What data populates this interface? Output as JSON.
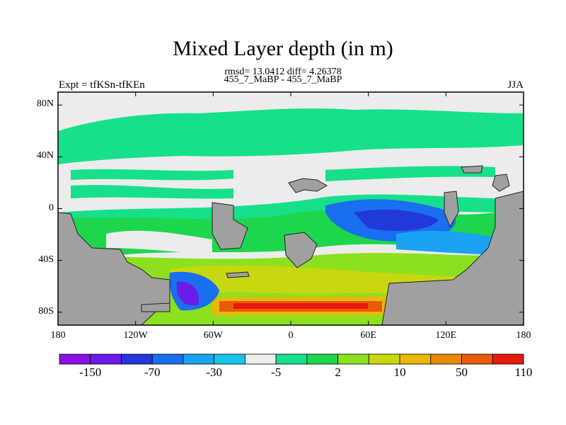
{
  "figure": {
    "title": "Mixed Layer depth (in m)",
    "stats_line": "rmsd= 13.0412  diff= 4.26378",
    "subtitle": "455_7_MaBP - 455_7_MaBP",
    "left_label": "Expt = tfKSn-tfKEn",
    "right_label": "JJA"
  },
  "axes": {
    "lat_ticks": [
      "80N",
      "40N",
      "0",
      "40S",
      "80S"
    ],
    "lat_values": [
      80,
      40,
      0,
      -40,
      -80
    ],
    "lon_ticks": [
      "180",
      "120W",
      "60W",
      "0",
      "60E",
      "120E",
      "180"
    ],
    "lon_values": [
      -180,
      -120,
      -60,
      0,
      60,
      120,
      180
    ],
    "lat_range": [
      -90,
      90
    ],
    "lon_range": [
      -180,
      180
    ]
  },
  "colorbar": {
    "labels": [
      "-150",
      "-70",
      "-30",
      "-5",
      "2",
      "10",
      "50",
      "110"
    ],
    "colors": [
      "#8b10e0",
      "#6a1ce8",
      "#2338d8",
      "#1a6ef0",
      "#19a3f0",
      "#1ac3e8",
      "#ececec",
      "#17e08a",
      "#1ed64c",
      "#8ce020",
      "#c8d810",
      "#e8b80a",
      "#e88a08",
      "#e85a08",
      "#e41a0a"
    ]
  },
  "chart_data": {
    "type": "heatmap",
    "title": "Mixed Layer depth (in m)",
    "variable": "Mixed Layer depth difference",
    "units": "m",
    "season": "JJA",
    "rmsd": 13.0412,
    "diff": 4.26378,
    "xlabel": "",
    "ylabel": "",
    "xlim": [
      -180,
      180
    ],
    "ylim": [
      -90,
      90
    ],
    "land_color": "#a0a0a0",
    "contour_levels": [
      -150,
      -70,
      -30,
      -5,
      2,
      10,
      50,
      110
    ]
  }
}
